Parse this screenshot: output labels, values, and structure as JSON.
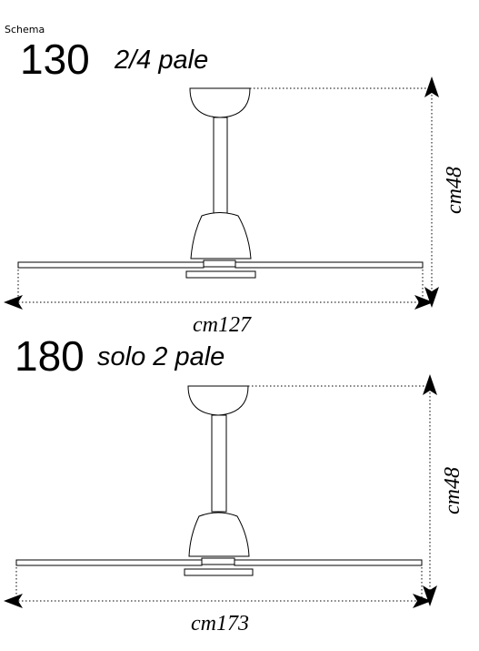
{
  "header": {
    "label": "Schema"
  },
  "models": [
    {
      "number": "130",
      "description": "2/4 pale",
      "height_label": "cm48",
      "width_label": "cm127"
    },
    {
      "number": "180",
      "description": "solo 2 pale",
      "height_label": "cm48",
      "width_label": "cm173"
    }
  ]
}
